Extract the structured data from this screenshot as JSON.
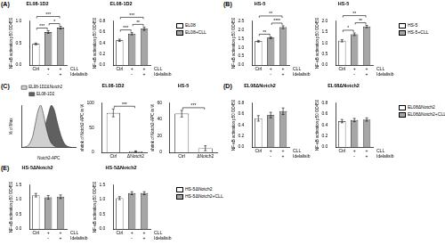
{
  "chart_data": [
    {
      "panel": "(A)",
      "grid": false,
      "series": [
        {
          "name": "EL08",
          "color": "#ffffff"
        },
        {
          "name": "EL08+CLL",
          "color": "#a6a6a6"
        }
      ],
      "charts": [
        {
          "type": "bar",
          "title": "EL08-1D2",
          "y_label": "NF-κB activation p50 OD450",
          "categories": [
            "Ctrl",
            "+",
            "+"
          ],
          "categories_row2": [
            null,
            "-",
            "+"
          ],
          "row_labels": [
            "CLL",
            "Idelalisib"
          ],
          "values": [
            [
              0.48,
              null,
              null
            ],
            [
              null,
              0.75,
              0.85
            ]
          ],
          "errors": [
            [
              0.02,
              null,
              null
            ],
            [
              null,
              0.03,
              0.03
            ]
          ],
          "ylim": [
            0,
            1
          ],
          "yticks": [
            {
              "value": 0,
              "label": "0.0"
            },
            0.5,
            {
              "value": 1,
              "label": "1.0"
            }
          ],
          "significance": [
            {
              "from": 0,
              "to": 1,
              "label": "***"
            },
            {
              "from": 1,
              "to": 2,
              "label": "*"
            },
            {
              "from": 0,
              "to": 2,
              "label": "***"
            }
          ]
        },
        {
          "type": "bar",
          "title": "EL08-1D2",
          "y_label": "NF-κB activation p50 OD450",
          "categories": [
            "Ctrl",
            "+",
            "+"
          ],
          "categories_row2": [
            null,
            "-",
            "+"
          ],
          "row_labels": [
            "CLL",
            "Idelalisib"
          ],
          "values": [
            [
              0.45,
              null,
              null
            ],
            [
              null,
              0.57,
              0.66
            ]
          ],
          "errors": [
            [
              0.02,
              null,
              null
            ],
            [
              null,
              0.02,
              0.03
            ]
          ],
          "ylim": [
            0,
            0.8
          ],
          "yticks": [
            {
              "value": 0,
              "label": "0.0"
            },
            0.2,
            0.4,
            0.6,
            0.8
          ],
          "significance": [
            {
              "from": 0,
              "to": 1,
              "label": "***"
            },
            {
              "from": 1,
              "to": 2,
              "label": "**"
            },
            {
              "from": 0,
              "to": 2,
              "label": "***"
            }
          ]
        }
      ]
    },
    {
      "panel": "(B)",
      "grid": false,
      "series": [
        {
          "name": "HS-5",
          "color": "#ffffff"
        },
        {
          "name": "HS-5+CLL",
          "color": "#a6a6a6"
        }
      ],
      "charts": [
        {
          "type": "bar",
          "title": "HS-5",
          "y_label": "NF-κB activation p50 OD450",
          "categories": [
            "Ctrl",
            "+",
            "+"
          ],
          "categories_row2": [
            null,
            "-",
            "+"
          ],
          "row_labels": [
            "CLL",
            "Idelalisib"
          ],
          "values": [
            [
              1.35,
              null,
              null
            ],
            [
              null,
              1.55,
              2.15
            ]
          ],
          "errors": [
            [
              0.05,
              null,
              null
            ],
            [
              null,
              0.05,
              0.08
            ]
          ],
          "ylim": [
            0,
            2.5
          ],
          "yticks": [
            {
              "value": 0,
              "label": "0.0"
            },
            0.5,
            {
              "value": 1,
              "label": "1.0"
            },
            1.5,
            {
              "value": 2,
              "label": "2.0"
            },
            2.5
          ],
          "significance": [
            {
              "from": 0,
              "to": 1,
              "label": "**"
            },
            {
              "from": 1,
              "to": 2,
              "label": "****"
            },
            {
              "from": 0,
              "to": 2,
              "label": "**"
            }
          ]
        },
        {
          "type": "bar",
          "title": "HS-5",
          "y_label": "NF-κB activation p50 OD450",
          "categories": [
            "Ctrl",
            "+",
            "+"
          ],
          "categories_row2": [
            null,
            "-",
            "+"
          ],
          "row_labels": [
            "CLL",
            "Idelalisib"
          ],
          "values": [
            [
              1.1,
              null,
              null
            ],
            [
              null,
              1.4,
              1.75
            ]
          ],
          "errors": [
            [
              0.05,
              null,
              null
            ],
            [
              null,
              0.06,
              0.05
            ]
          ],
          "ylim": [
            0,
            2
          ],
          "yticks": [
            {
              "value": 0,
              "label": "0.0"
            },
            0.5,
            {
              "value": 1,
              "label": "1.0"
            },
            1.5,
            {
              "value": 2,
              "label": "2.0"
            }
          ],
          "significance": [
            {
              "from": 0,
              "to": 1,
              "label": "*"
            },
            {
              "from": 1,
              "to": 2,
              "label": "**"
            },
            {
              "from": 0,
              "to": 2,
              "label": "**"
            }
          ]
        }
      ]
    },
    {
      "panel": "(C)",
      "grid": false,
      "series": [
        {
          "color": "#ffffff"
        }
      ],
      "charts": [
        {
          "type": "line",
          "x_label": "Notch2-APC",
          "y_label": "% of Max",
          "tick_labels": false,
          "legend": "top",
          "x": [
            0,
            5,
            10,
            15,
            20,
            25,
            30,
            35,
            40,
            45,
            50,
            55,
            60,
            65,
            70,
            75,
            80,
            85,
            90,
            95,
            100
          ],
          "xlim": [
            0,
            100
          ],
          "ylim": [
            0,
            100
          ],
          "series": [
            {
              "name": "EL08-1D2ΔNotch2",
              "color": "#d0d0d0",
              "values": [
                0,
                1,
                3,
                10,
                25,
                55,
                85,
                100,
                80,
                50,
                25,
                10,
                4,
                1,
                0,
                0,
                0,
                0,
                0,
                0,
                0
              ]
            },
            {
              "name": "EL08-1D2",
              "color": "#606060",
              "values": [
                0,
                0,
                0,
                0,
                1,
                3,
                8,
                18,
                35,
                58,
                82,
                100,
                90,
                65,
                40,
                20,
                8,
                3,
                1,
                0,
                0
              ]
            }
          ]
        },
        {
          "type": "bar",
          "title": "EL08-1D2",
          "y_label": "shrink of Notch2-APC in %",
          "categories": [
            "Ctrl",
            "ΔNotch2"
          ],
          "values": [
            [
              80,
              2
            ]
          ],
          "errors": [
            [
              8,
              1
            ]
          ],
          "ylim": [
            0,
            100
          ],
          "yticks": [
            0,
            50,
            100
          ],
          "significance": [
            {
              "from": 0,
              "to": 1,
              "label": "***"
            }
          ]
        },
        {
          "type": "bar",
          "title": "HS-5",
          "y_label": "shrink of Notch2-APC in %",
          "categories": [
            "Ctrl",
            "ΔNotch2"
          ],
          "values": [
            [
              47,
              5
            ]
          ],
          "errors": [
            [
              4,
              3
            ]
          ],
          "ylim": [
            0,
            60
          ],
          "yticks": [
            0,
            20,
            40,
            60
          ],
          "significance": [
            {
              "from": 0,
              "to": 1,
              "label": "***"
            }
          ]
        }
      ]
    },
    {
      "panel": "(D)",
      "grid": false,
      "series": [
        {
          "name": "EL08ΔNotch2",
          "color": "#ffffff"
        },
        {
          "name": "EL08ΔNotch2+CLL",
          "color": "#a6a6a6"
        }
      ],
      "charts": [
        {
          "type": "bar",
          "title": "EL08ΔNotch2",
          "y_label": "NF-κB activation p50 OD450",
          "categories": [
            "Ctrl",
            "+",
            "+"
          ],
          "categories_row2": [
            null,
            "-",
            "+"
          ],
          "row_labels": [
            "CLL",
            "Idelalisib"
          ],
          "values": [
            [
              0.52,
              null,
              null
            ],
            [
              null,
              0.58,
              0.65
            ]
          ],
          "errors": [
            [
              0.05,
              null,
              null
            ],
            [
              null,
              0.05,
              0.06
            ]
          ],
          "ylim": [
            0,
            0.8
          ],
          "yticks": [
            {
              "value": 0,
              "label": "0.0"
            },
            0.2,
            0.4,
            0.6,
            0.8
          ]
        },
        {
          "type": "bar",
          "title": "EL08ΔNotch2",
          "y_label": "NF-κB activation p50 OD450",
          "categories": [
            "Ctrl",
            "+",
            "+"
          ],
          "categories_row2": [
            null,
            "-",
            "+"
          ],
          "row_labels": [
            "CLL",
            "Idelalisib"
          ],
          "values": [
            [
              0.47,
              null,
              null
            ],
            [
              null,
              0.49,
              0.5
            ]
          ],
          "errors": [
            [
              0.03,
              null,
              null
            ],
            [
              null,
              0.03,
              0.03
            ]
          ],
          "ylim": [
            0,
            0.8
          ],
          "yticks": [
            {
              "value": 0,
              "label": "0.0"
            },
            0.2,
            0.4,
            0.6,
            0.8
          ]
        }
      ]
    },
    {
      "panel": "(E)",
      "grid": false,
      "series": [
        {
          "name": "HS-5ΔNotch2",
          "color": "#ffffff"
        },
        {
          "name": "HS-5ΔNotch2+CLL",
          "color": "#a6a6a6"
        }
      ],
      "charts": [
        {
          "type": "bar",
          "title": "HS-5ΔNotch2",
          "y_label": "NF-κB activation p50 OD450",
          "categories": [
            "Ctrl",
            "+",
            "+"
          ],
          "categories_row2": [
            null,
            "-",
            "+"
          ],
          "row_labels": [
            "CLL",
            "Idelalisib"
          ],
          "values": [
            [
              1.15,
              null,
              null
            ],
            [
              null,
              1.08,
              1.1
            ]
          ],
          "errors": [
            [
              0.06,
              null,
              null
            ],
            [
              null,
              0.06,
              0.06
            ]
          ],
          "ylim": [
            0,
            1.5
          ],
          "yticks": [
            {
              "value": 0,
              "label": "0.0"
            },
            0.5,
            {
              "value": 1,
              "label": "1.0"
            },
            1.5
          ]
        },
        {
          "type": "bar",
          "title": "HS-5ΔNotch2",
          "y_label": "NF-κB activation p50 OD450",
          "categories": [
            "Ctrl",
            "+",
            "+"
          ],
          "categories_row2": [
            null,
            "-",
            "+"
          ],
          "row_labels": [
            "CLL",
            "Idelalisib"
          ],
          "values": [
            [
              1.05,
              null,
              null
            ],
            [
              null,
              1.22,
              1.22
            ]
          ],
          "errors": [
            [
              0.05,
              null,
              null
            ],
            [
              null,
              0.05,
              0.05
            ]
          ],
          "ylim": [
            0,
            1.5
          ],
          "yticks": [
            {
              "value": 0,
              "label": "0.0"
            },
            0.5,
            {
              "value": 1,
              "label": "1.0"
            },
            1.5
          ]
        }
      ]
    }
  ]
}
